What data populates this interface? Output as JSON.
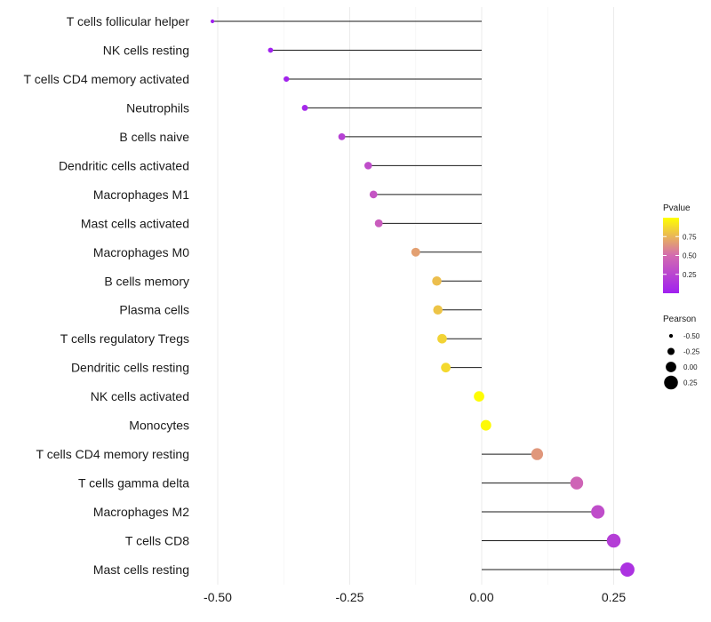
{
  "chart_data": {
    "type": "lollipop",
    "title": "",
    "xlabel": "",
    "ylabel": "",
    "xlim": [
      -0.52,
      0.3
    ],
    "x_ticks": [
      -0.5,
      -0.25,
      0.0,
      0.25
    ],
    "x_tick_labels": [
      "-0.50",
      "-0.25",
      "0.00",
      "0.25"
    ],
    "baseline": 0.0,
    "grid": true,
    "legend_position": "right",
    "categories": [
      "T cells follicular helper",
      "NK cells resting",
      "T cells CD4 memory activated",
      "Neutrophils",
      "B cells naive",
      "Dendritic cells activated",
      "Macrophages M1",
      "Mast cells activated",
      "Macrophages M0",
      "B cells memory",
      "Plasma cells",
      "T cells regulatory  Tregs",
      "Dendritic cells resting",
      "NK cells activated",
      "Monocytes",
      "T cells CD4 memory resting",
      "T cells gamma delta",
      "Macrophages M2",
      "T cells CD8",
      "Mast cells resting"
    ],
    "pearson": [
      -0.51,
      -0.4,
      -0.37,
      -0.335,
      -0.265,
      -0.215,
      -0.205,
      -0.195,
      -0.125,
      -0.085,
      -0.083,
      -0.075,
      -0.068,
      -0.005,
      0.008,
      0.105,
      0.18,
      0.22,
      0.25,
      0.276
    ],
    "pvalue": [
      0.001,
      0.01,
      0.02,
      0.05,
      0.22,
      0.3,
      0.35,
      0.4,
      0.68,
      0.78,
      0.8,
      0.85,
      0.87,
      0.99,
      0.98,
      0.65,
      0.45,
      0.3,
      0.2,
      0.12
    ],
    "color_legend": {
      "title": "Pvalue",
      "ticks": [
        0.25,
        0.5,
        0.75
      ],
      "tick_labels": [
        "0.25",
        "0.50",
        "0.75"
      ],
      "range": [
        0.0,
        1.0
      ],
      "low_color": "#A020F0",
      "mid_color": "#D36BB0",
      "high_color": "#FFFF00"
    },
    "size_legend": {
      "title": "Pearson",
      "values": [
        -0.5,
        -0.25,
        0.0,
        0.25
      ],
      "labels": [
        "-0.50",
        "-0.25",
        "0.00",
        "0.25"
      ]
    }
  }
}
